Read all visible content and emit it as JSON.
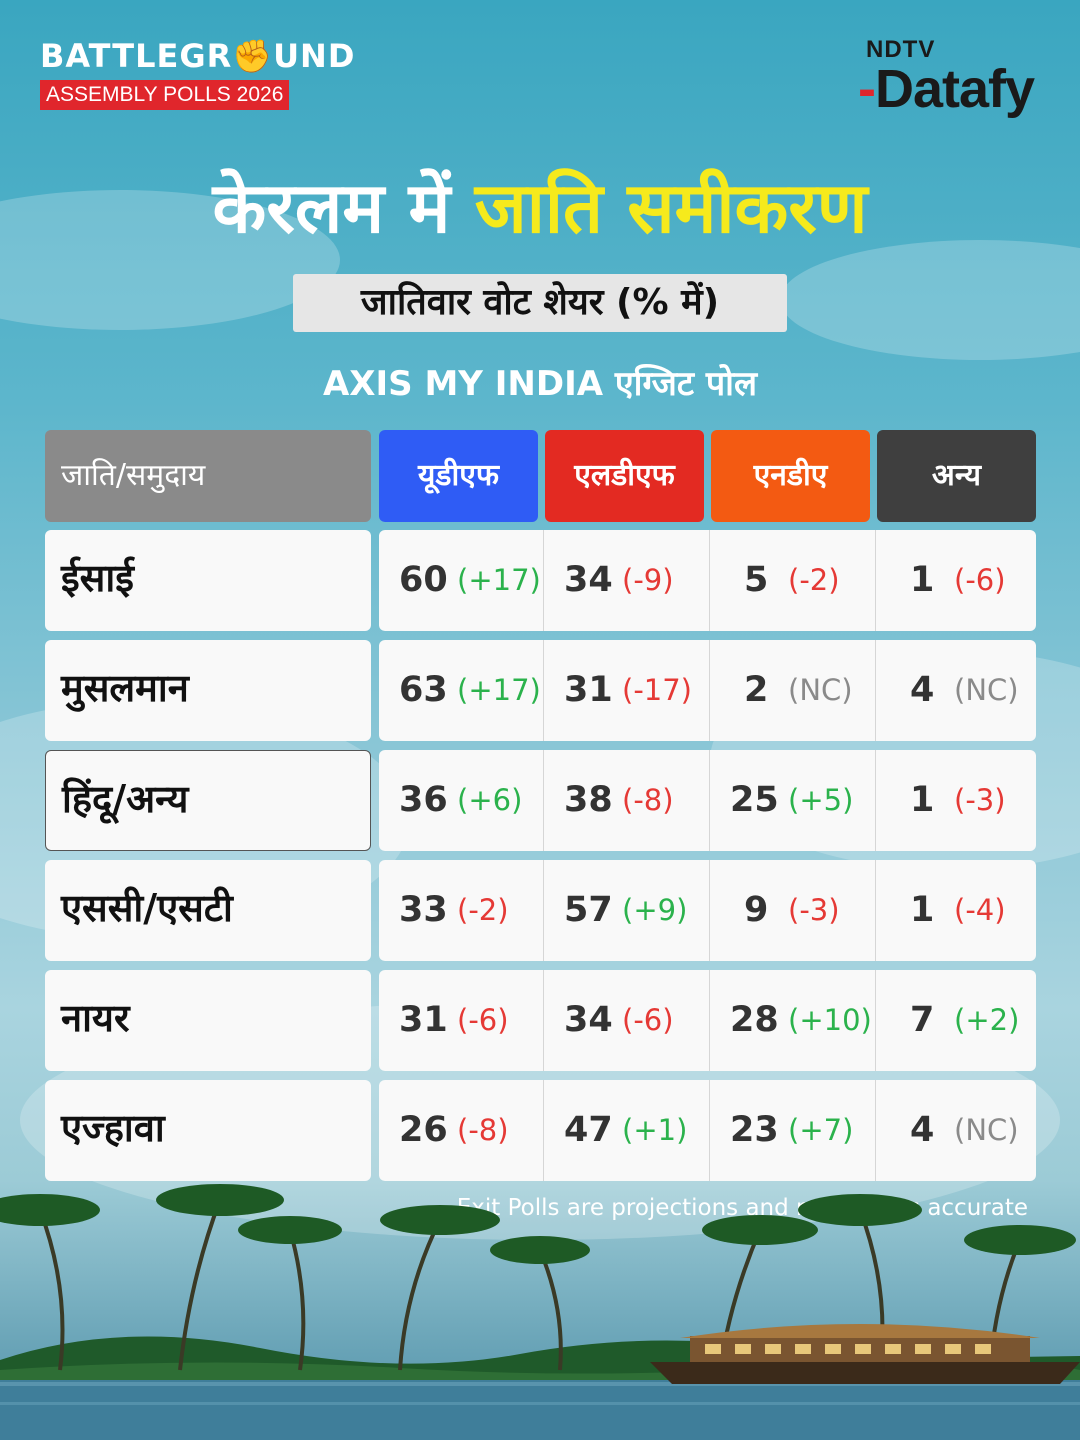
{
  "header": {
    "brand_word_1": "BATTLEGR",
    "brand_fist": "✊",
    "brand_word_2": "UND",
    "brand_sub": "ASSEMBLY POLLS 2026",
    "logo_top": "NDTV",
    "logo_main": "Datafy"
  },
  "title_part_1": "केरलम में",
  "title_part_2": "जाति समीकरण",
  "subtitle": "जातिवार वोट शेयर (% में)",
  "source": "AXIS MY INDIA एग्जिट पोल",
  "disclaimer": "Exit Polls are projections and not always accurate",
  "colors": {
    "udf": "#2f5cf5",
    "ldf": "#e32a22",
    "nda": "#f35a12",
    "others": "#3f3f3f",
    "positive": "#2bb24c",
    "negative": "#e53935",
    "no_change": "#8a8a8a"
  },
  "chart_data": {
    "type": "table",
    "row_header": "जाति/समुदाय",
    "columns": [
      "यूडीएफ",
      "एलडीएफ",
      "एनडीए",
      "अन्य"
    ],
    "rows": [
      {
        "group": "ईसाई",
        "values": [
          60,
          34,
          5,
          1
        ],
        "changes": [
          "(+17)",
          "(-9)",
          "(-2)",
          "(-6)"
        ]
      },
      {
        "group": "मुसलमान",
        "values": [
          63,
          31,
          2,
          4
        ],
        "changes": [
          "(+17)",
          "(-17)",
          "(NC)",
          "(NC)"
        ]
      },
      {
        "group": "हिंदू/अन्य",
        "values": [
          36,
          38,
          25,
          1
        ],
        "changes": [
          "(+6)",
          "(-8)",
          "(+5)",
          "(-3)"
        ]
      },
      {
        "group": "एससी/एसटी",
        "values": [
          33,
          57,
          9,
          1
        ],
        "changes": [
          "(-2)",
          "(+9)",
          "(-3)",
          "(-4)"
        ]
      },
      {
        "group": "नायर",
        "values": [
          31,
          34,
          28,
          7
        ],
        "changes": [
          "(-6)",
          "(-6)",
          "(+10)",
          "(+2)"
        ]
      },
      {
        "group": "एज्हावा",
        "values": [
          26,
          47,
          23,
          4
        ],
        "changes": [
          "(-8)",
          "(+1)",
          "(+7)",
          "(NC)"
        ]
      }
    ]
  }
}
